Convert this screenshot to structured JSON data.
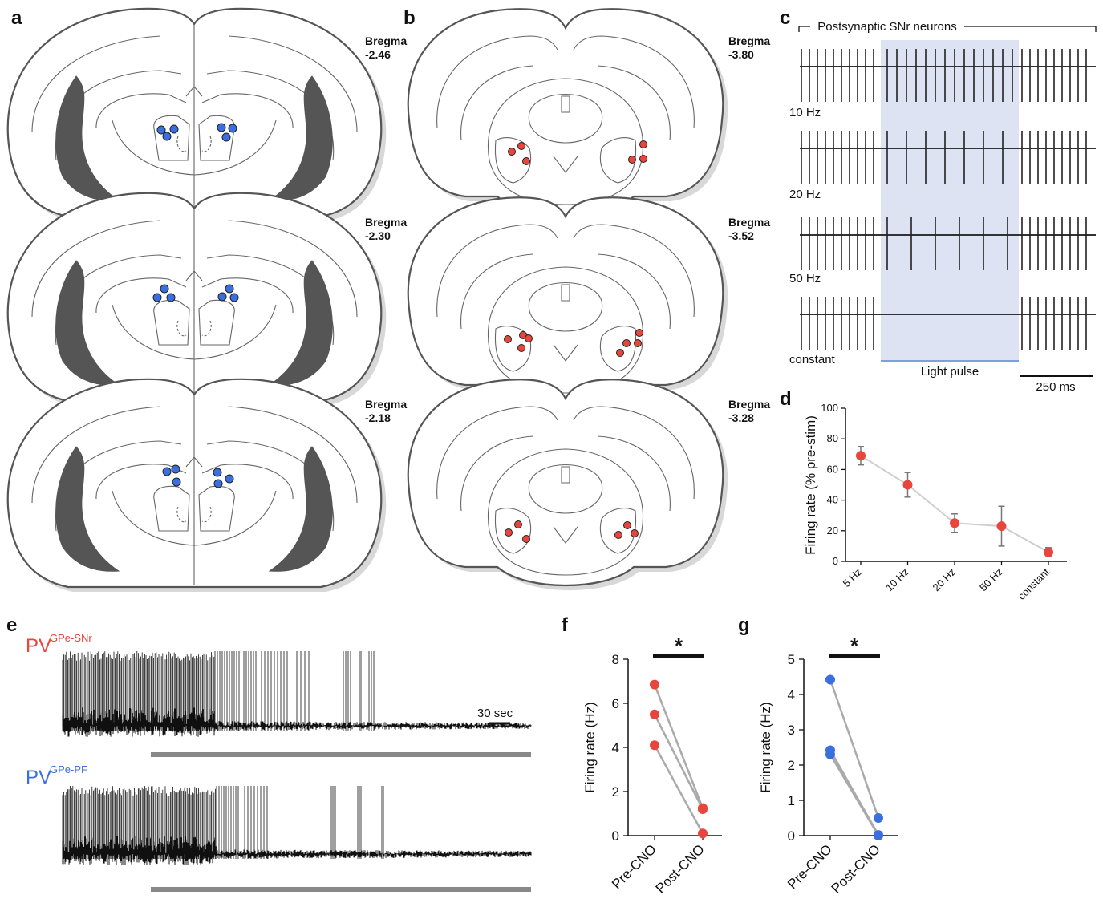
{
  "panels": {
    "a": {
      "letter": "a",
      "bregmas": [
        "Bregma\n-2.46",
        "Bregma\n-2.30",
        "Bregma\n-2.18"
      ],
      "bregma_titles": [
        "Bregma",
        "Bregma",
        "Bregma"
      ],
      "bregma_values": [
        "-2.46",
        "-2.30",
        "-2.18"
      ],
      "dot_color": "#3b6fe0"
    },
    "b": {
      "letter": "b",
      "bregma_titles": [
        "Bregma",
        "Bregma",
        "Bregma"
      ],
      "bregma_values": [
        "-3.80",
        "-3.52",
        "-3.28"
      ],
      "dot_color": "#e8453c"
    },
    "c": {
      "letter": "c",
      "header": "Postsynaptic SNr neurons",
      "rows": [
        "10 Hz",
        "20 Hz",
        "50 Hz",
        "constant"
      ],
      "light_label": "Light pulse",
      "scale_label": "250 ms",
      "light_color": "#dde3f2"
    },
    "d": {
      "letter": "d"
    },
    "e": {
      "letter": "e",
      "trace1_label_main": "PV",
      "trace1_label_sup": "GPe-SNr",
      "trace1_color": "#e8453c",
      "trace2_label_main": "PV",
      "trace2_label_sup": "GPe-PF",
      "trace2_color": "#3b6fe0",
      "scale_label": "30 sec"
    },
    "f": {
      "letter": "f",
      "sig": "*"
    },
    "g": {
      "letter": "g",
      "sig": "*"
    }
  },
  "chart_data": [
    {
      "id": "d",
      "type": "line",
      "categories": [
        "5 Hz",
        "10 Hz",
        "20 Hz",
        "50 Hz",
        "constant"
      ],
      "series": [
        {
          "values": [
            69,
            50,
            25,
            23,
            6
          ],
          "error": [
            6,
            8,
            6,
            13,
            3
          ],
          "color": "#e8453c"
        }
      ],
      "ylabel": "Firing rate (% pre-stim)",
      "ylim": [
        0,
        100
      ],
      "yticks": [
        0,
        20,
        40,
        60,
        80,
        100
      ]
    },
    {
      "id": "f",
      "type": "scatter",
      "categories": [
        "Pre-CNO",
        "Post-CNO"
      ],
      "pairs": [
        [
          6.85,
          1.25
        ],
        [
          5.5,
          1.2
        ],
        [
          4.1,
          0.1
        ]
      ],
      "color": "#e8453c",
      "ylabel": "Firing rate (Hz)",
      "ylim": [
        0,
        8
      ],
      "yticks": [
        0,
        2,
        4,
        6,
        8
      ]
    },
    {
      "id": "g",
      "type": "scatter",
      "categories": [
        "Pre-CNO",
        "Post-CNO"
      ],
      "pairs": [
        [
          4.42,
          0.5
        ],
        [
          2.42,
          0.02
        ],
        [
          2.3,
          0.0
        ]
      ],
      "color": "#3b6fe0",
      "ylabel": "Firing rate (Hz)",
      "ylim": [
        0,
        5
      ],
      "yticks": [
        0,
        1,
        2,
        3,
        4,
        5
      ]
    }
  ]
}
